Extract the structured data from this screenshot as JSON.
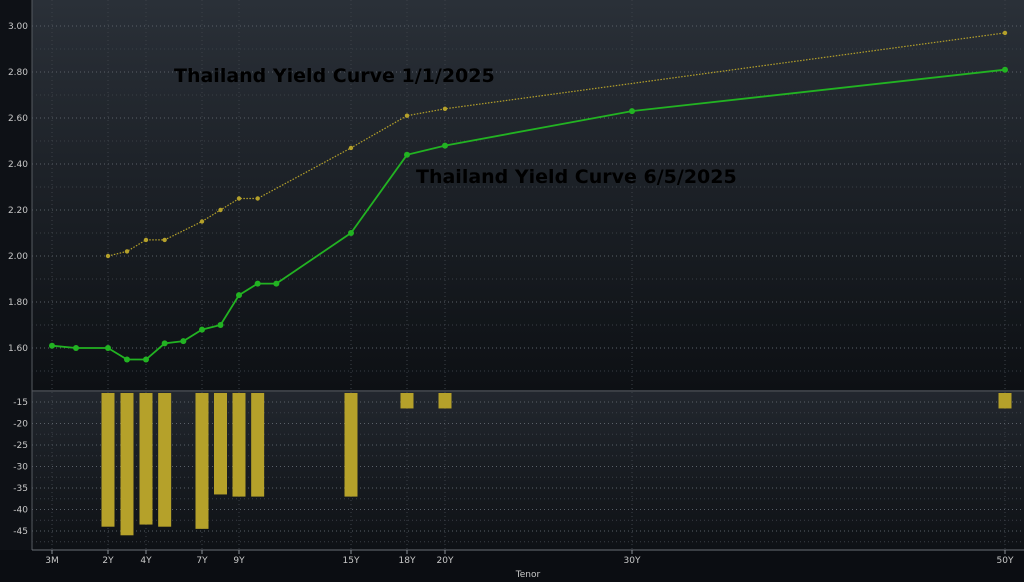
{
  "chart_data": [
    {
      "type": "line",
      "ylim": [
        1.45,
        3.05
      ],
      "yticks": [
        "3.00",
        "2.80",
        "2.60",
        "2.40",
        "2.20",
        "2.00",
        "1.80",
        "1.60"
      ],
      "x_tenors": [
        0.25,
        1,
        2,
        3,
        4,
        5,
        6,
        7,
        8,
        9,
        10,
        15,
        18,
        20,
        30,
        50
      ],
      "series": [
        {
          "name": "Thailand Yield Curve 1/1/2025",
          "color": "#b5a12a",
          "points": [
            [
              2,
              2.0
            ],
            [
              3,
              2.02
            ],
            [
              4,
              2.07
            ],
            [
              5,
              2.07
            ],
            [
              7,
              2.15
            ],
            [
              8,
              2.2
            ],
            [
              9,
              2.25
            ],
            [
              10,
              2.25
            ],
            [
              15,
              2.47
            ],
            [
              18,
              2.61
            ],
            [
              20,
              2.64
            ],
            [
              50,
              2.97
            ]
          ]
        },
        {
          "name": "Thailand Yield Curve 6/5/2025",
          "color": "#22b322",
          "points": [
            [
              0.25,
              1.61
            ],
            [
              1,
              1.6
            ],
            [
              2,
              1.6
            ],
            [
              3,
              1.55
            ],
            [
              4,
              1.55
            ],
            [
              5,
              1.62
            ],
            [
              6,
              1.63
            ],
            [
              7,
              1.68
            ],
            [
              8,
              1.7
            ],
            [
              9,
              1.83
            ],
            [
              10,
              1.88
            ],
            [
              11,
              1.88
            ],
            [
              15,
              2.1
            ],
            [
              18,
              2.44
            ],
            [
              20,
              2.48
            ],
            [
              30,
              2.63
            ],
            [
              50,
              2.81
            ]
          ]
        }
      ]
    },
    {
      "type": "bar",
      "ylim": [
        -48,
        -13
      ],
      "yticks": [
        "-15",
        "-20",
        "-25",
        "-30",
        "-35",
        "-40",
        "-45"
      ],
      "color": "#b5a12a",
      "bars": [
        {
          "x": 2,
          "value": -44
        },
        {
          "x": 3,
          "value": -46
        },
        {
          "x": 4,
          "value": -43.5
        },
        {
          "x": 5,
          "value": -44
        },
        {
          "x": 7,
          "value": -44.5
        },
        {
          "x": 8,
          "value": -36.5
        },
        {
          "x": 9,
          "value": -37
        },
        {
          "x": 10,
          "value": -37
        },
        {
          "x": 15,
          "value": -37
        },
        {
          "x": 18,
          "value": -16.5
        },
        {
          "x": 20,
          "value": -16.5
        },
        {
          "x": 50,
          "value": -16.5
        }
      ]
    }
  ],
  "x_axis": {
    "ticks": [
      {
        "x": 0.25,
        "label": "3M"
      },
      {
        "x": 2,
        "label": "2Y"
      },
      {
        "x": 4,
        "label": "4Y"
      },
      {
        "x": 7,
        "label": "7Y"
      },
      {
        "x": 9,
        "label": "9Y"
      },
      {
        "x": 15,
        "label": "15Y"
      },
      {
        "x": 18,
        "label": "18Y"
      },
      {
        "x": 20,
        "label": "20Y"
      },
      {
        "x": 30,
        "label": "30Y"
      },
      {
        "x": 50,
        "label": "50Y"
      }
    ],
    "title": "Tenor"
  }
}
